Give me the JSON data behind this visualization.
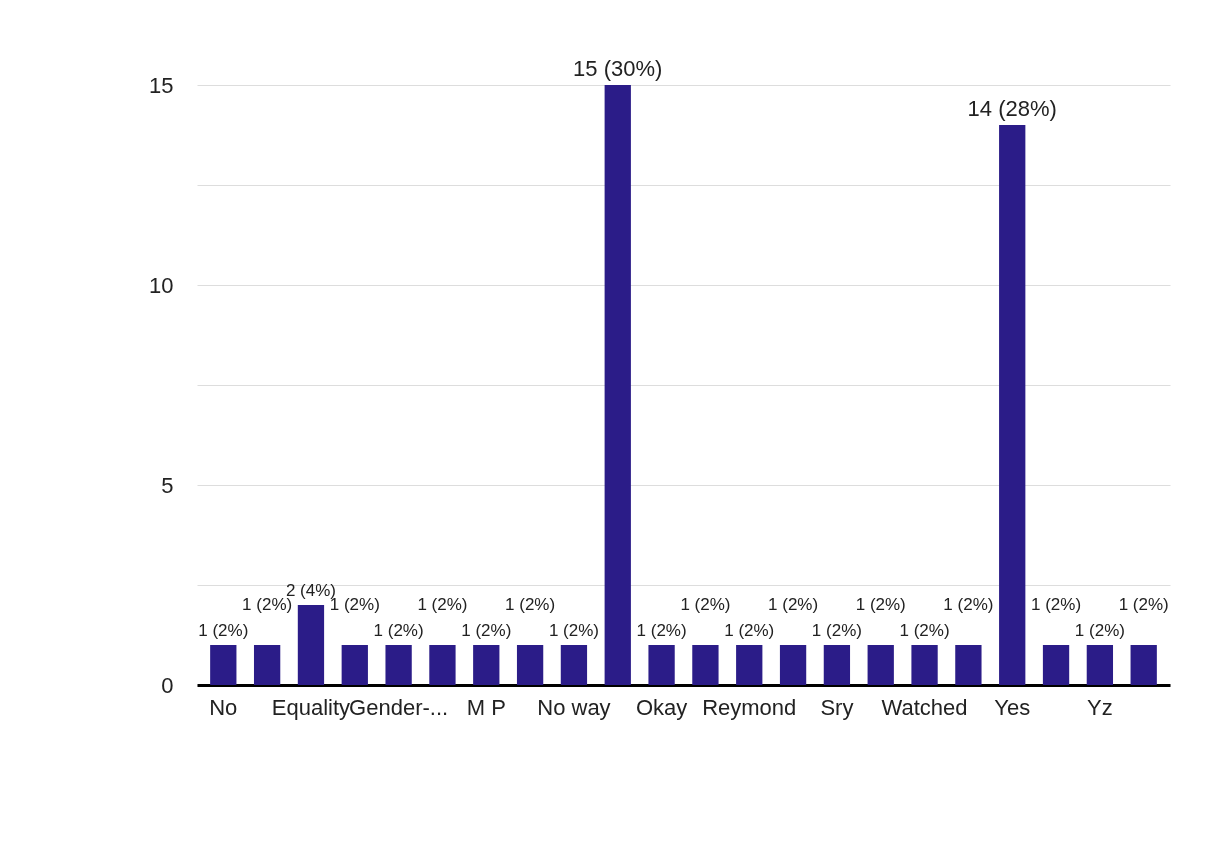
{
  "chart_data": {
    "type": "bar",
    "categories": [
      "No",
      null,
      "Equality",
      null,
      "Gender-...",
      null,
      "M P",
      null,
      "No way",
      null,
      "Okay",
      null,
      "Reymond",
      null,
      "Sry",
      null,
      "Watched",
      null,
      "Yes",
      null,
      "Yz",
      null
    ],
    "values": [
      1,
      1,
      2,
      1,
      1,
      1,
      1,
      1,
      1,
      15,
      1,
      1,
      1,
      1,
      1,
      1,
      1,
      1,
      14,
      1,
      1,
      1
    ],
    "value_labels": [
      "1 (2%)",
      "1 (2%)",
      "2 (4%)",
      "1 (2%)",
      "1 (2%)",
      "1 (2%)",
      "1 (2%)",
      "1 (2%)",
      "1 (2%)",
      "15 (30%)",
      "1 (2%)",
      "1 (2%)",
      "1 (2%)",
      "1 (2%)",
      "1 (2%)",
      "1 (2%)",
      "1 (2%)",
      "1 (2%)",
      "14 (28%)",
      "1 (2%)",
      "1 (2%)",
      "1 (2%)"
    ],
    "color": "#2b1c88",
    "ylim": [
      0,
      15
    ],
    "yticks": [
      0,
      {
        "value": 2.5,
        "label": null
      },
      5,
      {
        "value": 7.5,
        "label": null
      },
      10,
      {
        "value": 12.5,
        "label": null
      },
      15
    ],
    "grid": "y"
  }
}
